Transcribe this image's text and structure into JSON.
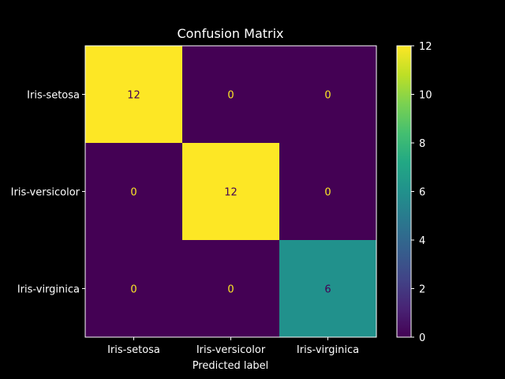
{
  "chart_data": {
    "type": "heatmap",
    "title": "Confusion Matrix",
    "xlabel": "Predicted label",
    "ylabel": "",
    "x_categories": [
      "Iris-setosa",
      "Iris-versicolor",
      "Iris-virginica"
    ],
    "y_categories": [
      "Iris-setosa",
      "Iris-versicolor",
      "Iris-virginica"
    ],
    "values": [
      [
        12,
        0,
        0
      ],
      [
        0,
        12,
        0
      ],
      [
        0,
        0,
        6
      ]
    ],
    "colormap": "viridis",
    "color_range": [
      0,
      12
    ],
    "colorbar_ticks": [
      0,
      2,
      4,
      6,
      8,
      10,
      12
    ],
    "colors": {
      "background": "#000000",
      "foreground": "#ffffff",
      "low_cell": "#440154",
      "mid_cell": "#21918c",
      "high_cell": "#fde725"
    }
  }
}
